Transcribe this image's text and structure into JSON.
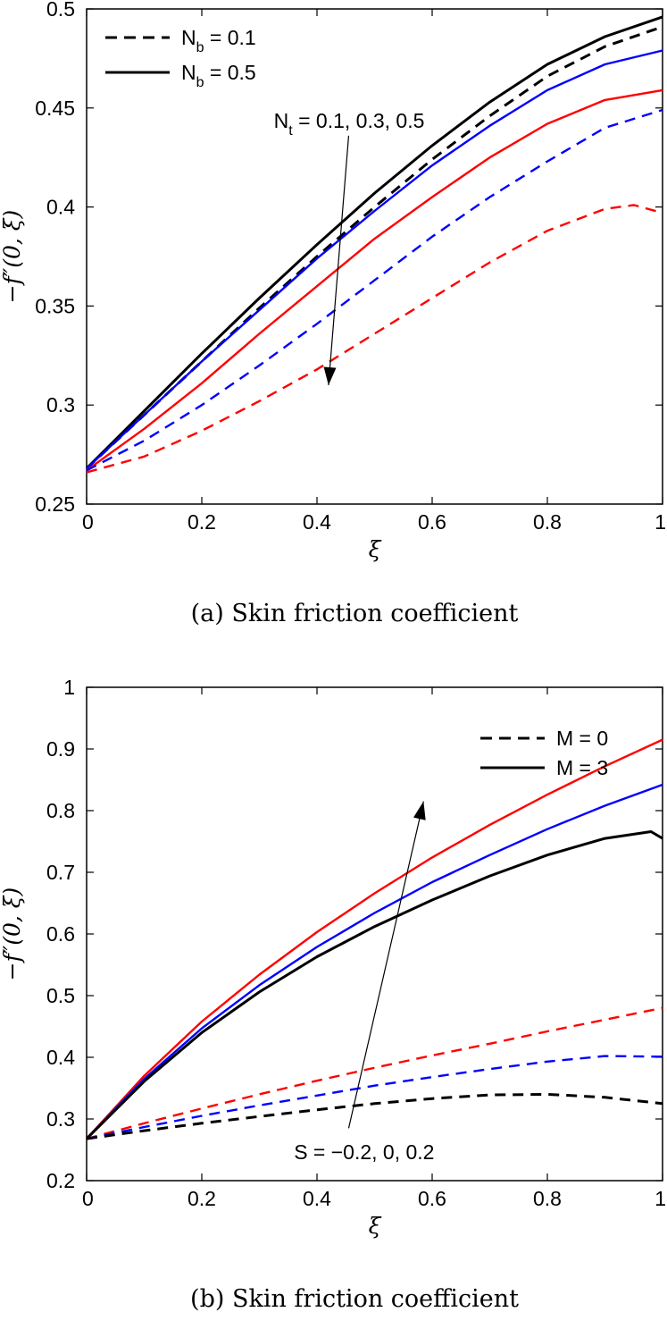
{
  "colors": {
    "black": "#000000",
    "blue": "#0000ff",
    "red": "#ff0000"
  },
  "chart_data": [
    {
      "type": "line",
      "caption": "(a)  Skin friction coefficient",
      "xlabel": "ξ",
      "ylabel": "−f″(0, ξ)",
      "xlim": [
        0,
        1
      ],
      "ylim": [
        0.25,
        0.5
      ],
      "xticks": [
        0,
        0.2,
        0.4,
        0.6,
        0.8,
        1
      ],
      "xtick_labels": [
        "0",
        "0.2",
        "0.4",
        "0.6",
        "0.8",
        "1"
      ],
      "yticks": [
        0.25,
        0.3,
        0.35,
        0.4,
        0.45,
        0.5
      ],
      "ytick_labels": [
        "0.25",
        "0.3",
        "0.35",
        "0.4",
        "0.45",
        "0.5"
      ],
      "grid": false,
      "legend_position": "top-left",
      "legend": [
        {
          "base": "N",
          "sub": "b",
          "rest": " = 0.1",
          "style": "dashed"
        },
        {
          "base": "N",
          "sub": "b",
          "rest": " = 0.5",
          "style": "solid"
        }
      ],
      "annotation": {
        "base": "N",
        "sub": "t",
        "rest": " = 0.1, 0.3, 0.5",
        "arrow_from": [
          0.455,
          0.436
        ],
        "arrow_to": [
          0.42,
          0.31
        ],
        "text_at": [
          0.325,
          0.44
        ]
      },
      "series": [
        {
          "color": "black",
          "style": "solid",
          "x": [
            0,
            0.1,
            0.2,
            0.3,
            0.4,
            0.5,
            0.6,
            0.7,
            0.8,
            0.9,
            1.0
          ],
          "y": [
            0.268,
            0.297,
            0.326,
            0.354,
            0.381,
            0.407,
            0.431,
            0.453,
            0.472,
            0.486,
            0.496
          ]
        },
        {
          "color": "black",
          "style": "dashed",
          "x": [
            0,
            0.1,
            0.2,
            0.3,
            0.4,
            0.5,
            0.6,
            0.7,
            0.8,
            0.9,
            1.0
          ],
          "y": [
            0.268,
            0.295,
            0.322,
            0.349,
            0.375,
            0.4,
            0.424,
            0.446,
            0.466,
            0.481,
            0.491
          ]
        },
        {
          "color": "blue",
          "style": "solid",
          "x": [
            0,
            0.1,
            0.2,
            0.3,
            0.4,
            0.5,
            0.6,
            0.7,
            0.8,
            0.9,
            1.0
          ],
          "y": [
            0.268,
            0.295,
            0.322,
            0.348,
            0.374,
            0.398,
            0.421,
            0.441,
            0.459,
            0.472,
            0.479
          ]
        },
        {
          "color": "red",
          "style": "solid",
          "x": [
            0,
            0.1,
            0.2,
            0.3,
            0.4,
            0.5,
            0.6,
            0.7,
            0.8,
            0.9,
            1.0
          ],
          "y": [
            0.267,
            0.288,
            0.311,
            0.336,
            0.36,
            0.384,
            0.405,
            0.425,
            0.442,
            0.454,
            0.459
          ]
        },
        {
          "color": "blue",
          "style": "dashed",
          "x": [
            0,
            0.1,
            0.2,
            0.3,
            0.4,
            0.5,
            0.6,
            0.7,
            0.8,
            0.9,
            1.0
          ],
          "y": [
            0.267,
            0.282,
            0.3,
            0.32,
            0.341,
            0.363,
            0.385,
            0.405,
            0.423,
            0.44,
            0.449
          ]
        },
        {
          "color": "red",
          "style": "dashed",
          "x": [
            0,
            0.1,
            0.2,
            0.3,
            0.4,
            0.5,
            0.6,
            0.7,
            0.8,
            0.9,
            0.95,
            1.0
          ],
          "y": [
            0.266,
            0.274,
            0.287,
            0.302,
            0.318,
            0.336,
            0.354,
            0.372,
            0.388,
            0.399,
            0.401,
            0.397
          ]
        }
      ]
    },
    {
      "type": "line",
      "caption": "(b)  Skin friction coefficient",
      "xlabel": "ξ",
      "ylabel": "−f″(0, ξ)",
      "xlim": [
        0,
        1
      ],
      "ylim": [
        0.2,
        1
      ],
      "xticks": [
        0,
        0.2,
        0.4,
        0.6,
        0.8,
        1
      ],
      "xtick_labels": [
        "0",
        "0.2",
        "0.4",
        "0.6",
        "0.8",
        "1"
      ],
      "yticks": [
        0.2,
        0.3,
        0.4,
        0.5,
        0.6,
        0.7,
        0.8,
        0.9,
        1
      ],
      "ytick_labels": [
        "0.2",
        "0.3",
        "0.4",
        "0.5",
        "0.6",
        "0.7",
        "0.8",
        "0.9",
        "1"
      ],
      "grid": false,
      "legend_position": "top-right",
      "legend": [
        {
          "base": "M = 0",
          "sub": "",
          "rest": "",
          "style": "dashed"
        },
        {
          "base": "M = 3",
          "sub": "",
          "rest": "",
          "style": "solid"
        }
      ],
      "annotation": {
        "base": "S = −0.2, 0, 0.2",
        "sub": "",
        "rest": "",
        "arrow_from": [
          0.455,
          0.285
        ],
        "arrow_to": [
          0.585,
          0.815
        ],
        "text_at": [
          0.36,
          0.235
        ]
      },
      "series": [
        {
          "color": "red",
          "style": "solid",
          "x": [
            0,
            0.1,
            0.2,
            0.3,
            0.4,
            0.5,
            0.6,
            0.7,
            0.8,
            0.9,
            1.0
          ],
          "y": [
            0.268,
            0.37,
            0.458,
            0.534,
            0.603,
            0.666,
            0.724,
            0.777,
            0.826,
            0.872,
            0.915
          ]
        },
        {
          "color": "blue",
          "style": "solid",
          "x": [
            0,
            0.1,
            0.2,
            0.3,
            0.4,
            0.5,
            0.6,
            0.7,
            0.8,
            0.9,
            1.0
          ],
          "y": [
            0.268,
            0.365,
            0.447,
            0.517,
            0.579,
            0.634,
            0.684,
            0.728,
            0.77,
            0.808,
            0.842
          ]
        },
        {
          "color": "black",
          "style": "solid",
          "x": [
            0,
            0.1,
            0.2,
            0.3,
            0.4,
            0.5,
            0.6,
            0.7,
            0.8,
            0.9,
            0.98,
            1.0
          ],
          "y": [
            0.268,
            0.361,
            0.44,
            0.506,
            0.563,
            0.612,
            0.655,
            0.694,
            0.728,
            0.755,
            0.766,
            0.755
          ]
        },
        {
          "color": "red",
          "style": "dashed",
          "x": [
            0,
            0.1,
            0.2,
            0.3,
            0.4,
            0.5,
            0.6,
            0.7,
            0.8,
            0.9,
            1.0
          ],
          "y": [
            0.268,
            0.293,
            0.317,
            0.34,
            0.362,
            0.383,
            0.403,
            0.422,
            0.442,
            0.461,
            0.48
          ]
        },
        {
          "color": "blue",
          "style": "dashed",
          "x": [
            0,
            0.1,
            0.2,
            0.3,
            0.4,
            0.5,
            0.6,
            0.7,
            0.8,
            0.9,
            1.0
          ],
          "y": [
            0.268,
            0.287,
            0.305,
            0.322,
            0.338,
            0.354,
            0.368,
            0.381,
            0.393,
            0.402,
            0.401
          ]
        },
        {
          "color": "black",
          "style": "dashed",
          "x": [
            0,
            0.1,
            0.2,
            0.3,
            0.4,
            0.5,
            0.6,
            0.7,
            0.8,
            0.9,
            1.0
          ],
          "y": [
            0.268,
            0.281,
            0.293,
            0.304,
            0.315,
            0.325,
            0.333,
            0.339,
            0.34,
            0.335,
            0.325
          ]
        }
      ]
    }
  ]
}
